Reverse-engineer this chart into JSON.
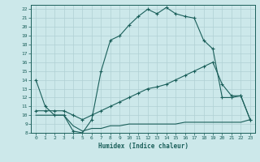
{
  "xlabel": "Humidex (Indice chaleur)",
  "bg_color": "#cce8ea",
  "grid_color": "#b0d0d4",
  "line_color": "#1a5f5a",
  "xlim": [
    -0.5,
    23.5
  ],
  "ylim": [
    8,
    22.5
  ],
  "xticks": [
    0,
    1,
    2,
    3,
    4,
    5,
    6,
    7,
    8,
    9,
    10,
    11,
    12,
    13,
    14,
    15,
    16,
    17,
    18,
    19,
    20,
    21,
    22,
    23
  ],
  "yticks": [
    8,
    9,
    10,
    11,
    12,
    13,
    14,
    15,
    16,
    17,
    18,
    19,
    20,
    21,
    22
  ],
  "curve1_x": [
    0,
    1,
    2,
    3,
    4,
    5,
    6,
    7,
    8,
    9,
    10,
    11,
    12,
    13,
    14,
    15,
    16,
    17,
    18,
    19,
    20,
    21,
    22,
    23
  ],
  "curve1_y": [
    14.0,
    11.0,
    10.0,
    10.0,
    8.2,
    8.0,
    9.5,
    15.0,
    18.5,
    19.0,
    20.2,
    21.2,
    22.0,
    21.5,
    22.2,
    21.5,
    21.2,
    21.0,
    18.5,
    17.5,
    12.0,
    12.0,
    12.2,
    9.5
  ],
  "curve2_x": [
    0,
    1,
    2,
    3,
    4,
    5,
    6,
    7,
    8,
    9,
    10,
    11,
    12,
    13,
    14,
    15,
    16,
    17,
    18,
    19,
    20,
    21,
    22,
    23
  ],
  "curve2_y": [
    10.5,
    10.5,
    10.5,
    10.5,
    10.0,
    9.5,
    10.0,
    10.5,
    11.0,
    11.5,
    12.0,
    12.5,
    13.0,
    13.2,
    13.5,
    14.0,
    14.5,
    15.0,
    15.5,
    16.0,
    13.5,
    12.2,
    12.2,
    9.5
  ],
  "curve3_x": [
    0,
    1,
    2,
    3,
    4,
    5,
    6,
    7,
    8,
    9,
    10,
    11,
    12,
    13,
    14,
    15,
    16,
    17,
    18,
    19,
    20,
    21,
    22,
    23
  ],
  "curve3_y": [
    10.0,
    10.0,
    10.0,
    10.0,
    8.8,
    8.2,
    8.5,
    8.5,
    8.8,
    8.8,
    9.0,
    9.0,
    9.0,
    9.0,
    9.0,
    9.0,
    9.2,
    9.2,
    9.2,
    9.2,
    9.2,
    9.2,
    9.2,
    9.5
  ]
}
